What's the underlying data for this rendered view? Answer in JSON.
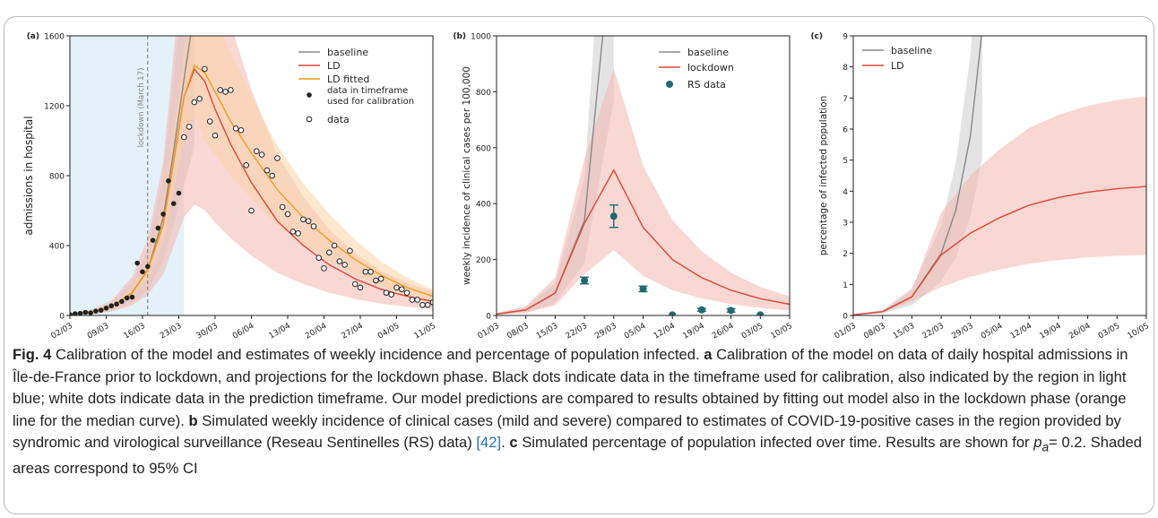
{
  "figure": {
    "caption": {
      "fig_label": "Fig. 4",
      "title": "Calibration of the model and estimates of weekly incidence and percentage of population infected.",
      "a_label": "a",
      "a_text": "Calibration of the model on data of daily hospital admissions in Île-de-France prior to lockdown, and projections for the lockdown phase. Black dots indicate data in the timeframe used for calibration, also indicated by the region in light blue; white dots indicate data in the prediction timeframe. Our model predictions are compared to results obtained by fitting out model also in the lockdown phase (orange line for the median curve).",
      "b_label": "b",
      "b_text_1": "Simulated weekly incidence of clinical cases (mild and severe) compared to estimates of COVID-19-positive cases in the region provided by syndromic and virological surveillance (Reseau Sentinelles (RS) data)",
      "b_cite": "[42]",
      "b_text_2": ".",
      "c_label": "c",
      "c_text_1": "Simulated percentage of population infected over time. Results are shown for",
      "pa_symbol": "p",
      "pa_sub": "a",
      "c_text_2": "= 0.2. Shaded areas correspond to 95% CI"
    }
  },
  "colors": {
    "baseline": "#888888",
    "baseline_band": "#d9d9d9",
    "ld": "#e0453a",
    "ld_band": "#f4b7ae",
    "fitted": "#f39a1f",
    "fitted_band": "#fbd3a8",
    "calib_region": "#e4f1f8",
    "rs": "#1e6a70"
  },
  "chart_data": [
    {
      "panel": "(a)",
      "type": "scatter",
      "ylabel": "admissions in hospital",
      "ylim": [
        0,
        1600
      ],
      "xlim": [
        0,
        70
      ],
      "yticks": [
        "0",
        "400",
        "800",
        "1200",
        "1600"
      ],
      "xticks": [
        "02/03",
        "09/03",
        "16/03",
        "23/03",
        "30/03",
        "06/04",
        "13/04",
        "20/04",
        "27/04",
        "04/05",
        "11/05"
      ],
      "calibration_region_days": [
        0,
        22
      ],
      "annotation": "lockdown (March 17)",
      "annotation_day": 15,
      "legend": [
        "baseline",
        "LD",
        "LD fitted",
        "data in timeframe used for calibration",
        "data"
      ],
      "legend_position": "top-right",
      "series": [
        {
          "name": "baseline",
          "x": [
            0,
            4,
            8,
            12,
            15,
            18,
            20,
            22,
            24
          ],
          "values": [
            5,
            18,
            50,
            130,
            260,
            560,
            940,
            1350,
            1750
          ]
        },
        {
          "name": "LD",
          "x": [
            0,
            4,
            8,
            12,
            15,
            18,
            20,
            22,
            24,
            26,
            28,
            31,
            35,
            40,
            45,
            50,
            55,
            60,
            65,
            70
          ],
          "values": [
            5,
            18,
            50,
            130,
            260,
            520,
            880,
            1250,
            1410,
            1340,
            1180,
            980,
            760,
            540,
            400,
            290,
            210,
            150,
            110,
            80
          ]
        },
        {
          "name": "LD fitted",
          "x": [
            0,
            4,
            8,
            12,
            15,
            18,
            20,
            22,
            24,
            26,
            28,
            31,
            35,
            40,
            45,
            50,
            55,
            60,
            65,
            70
          ],
          "values": [
            5,
            18,
            50,
            130,
            260,
            520,
            880,
            1250,
            1430,
            1390,
            1280,
            1110,
            930,
            720,
            560,
            430,
            320,
            230,
            160,
            110
          ]
        }
      ],
      "points_calibration": {
        "name": "data in timeframe used for calibration",
        "x": [
          0,
          1,
          2,
          3,
          4,
          5,
          6,
          7,
          8,
          9,
          10,
          11,
          12,
          13,
          14,
          15,
          16,
          17,
          18,
          19,
          20,
          21
        ],
        "values": [
          5,
          10,
          12,
          18,
          15,
          25,
          30,
          42,
          55,
          65,
          80,
          100,
          105,
          300,
          250,
          280,
          430,
          500,
          580,
          770,
          640,
          700
        ]
      },
      "points_prediction": {
        "name": "data",
        "x": [
          22,
          23,
          24,
          25,
          26,
          27,
          28,
          29,
          30,
          31,
          32,
          33,
          34,
          35,
          36,
          37,
          38,
          39,
          40,
          41,
          42,
          43,
          44,
          45,
          46,
          47,
          48,
          49,
          50,
          51,
          52,
          53,
          54,
          55,
          56,
          57,
          58,
          59,
          60,
          61,
          62,
          63,
          64,
          65,
          66,
          67,
          68,
          69,
          70
        ],
        "values": [
          1020,
          1080,
          1220,
          1240,
          1410,
          1110,
          1030,
          1290,
          1280,
          1290,
          1070,
          1060,
          860,
          600,
          940,
          920,
          830,
          800,
          900,
          620,
          580,
          480,
          470,
          550,
          540,
          510,
          330,
          270,
          360,
          400,
          310,
          290,
          370,
          180,
          160,
          250,
          250,
          200,
          210,
          130,
          120,
          160,
          150,
          130,
          90,
          90,
          60,
          60,
          75
        ]
      }
    },
    {
      "panel": "(b)",
      "type": "line",
      "ylabel": "weekly incidence of clinical cases per 100,000",
      "ylim": [
        0,
        1000
      ],
      "xlim": [
        0,
        10
      ],
      "yticks": [
        "0",
        "200",
        "400",
        "600",
        "800",
        "1000"
      ],
      "xticks": [
        "01/03",
        "08/03",
        "15/03",
        "22/03",
        "29/03",
        "05/04",
        "12/04",
        "19/04",
        "26/04",
        "03/05",
        "10/05"
      ],
      "legend": [
        "baseline",
        "lockdown",
        "RS data"
      ],
      "legend_position": "top-right",
      "series": [
        {
          "name": "baseline",
          "x": [
            0,
            1,
            2,
            3,
            4
          ],
          "values": [
            5,
            20,
            80,
            340,
            1400
          ]
        },
        {
          "name": "lockdown",
          "x": [
            0,
            1,
            2,
            3,
            4,
            5,
            6,
            7,
            8,
            9,
            10
          ],
          "values": [
            5,
            20,
            80,
            330,
            520,
            315,
            200,
            135,
            90,
            60,
            40
          ]
        }
      ],
      "rs_data": {
        "name": "RS data",
        "x": [
          3,
          4,
          5,
          6,
          7,
          8,
          9
        ],
        "values": [
          125,
          355,
          95,
          2,
          20,
          18,
          2
        ],
        "errors": [
          12,
          40,
          10,
          0,
          5,
          6,
          0
        ]
      }
    },
    {
      "panel": "(c)",
      "type": "line",
      "ylabel": "percentage of infected population",
      "ylim": [
        0,
        9
      ],
      "xlim": [
        0,
        10
      ],
      "yticks": [
        "0",
        "1",
        "2",
        "3",
        "4",
        "5",
        "6",
        "7",
        "8",
        "9"
      ],
      "xticks": [
        "01/03",
        "08/03",
        "15/03",
        "22/03",
        "29/03",
        "05/04",
        "12/04",
        "19/04",
        "26/04",
        "03/05",
        "10/05"
      ],
      "legend": [
        "baseline",
        "LD"
      ],
      "legend_position": "top-left",
      "series": [
        {
          "name": "baseline",
          "x": [
            0,
            1,
            2,
            3,
            3.5,
            4,
            4.4
          ],
          "values": [
            0.02,
            0.12,
            0.6,
            2.0,
            3.4,
            5.8,
            9.2
          ]
        },
        {
          "name": "LD",
          "x": [
            0,
            1,
            2,
            3,
            4,
            5,
            6,
            7,
            8,
            9,
            10
          ],
          "values": [
            0.02,
            0.12,
            0.6,
            1.95,
            2.65,
            3.15,
            3.55,
            3.8,
            3.97,
            4.08,
            4.15
          ]
        }
      ]
    }
  ]
}
